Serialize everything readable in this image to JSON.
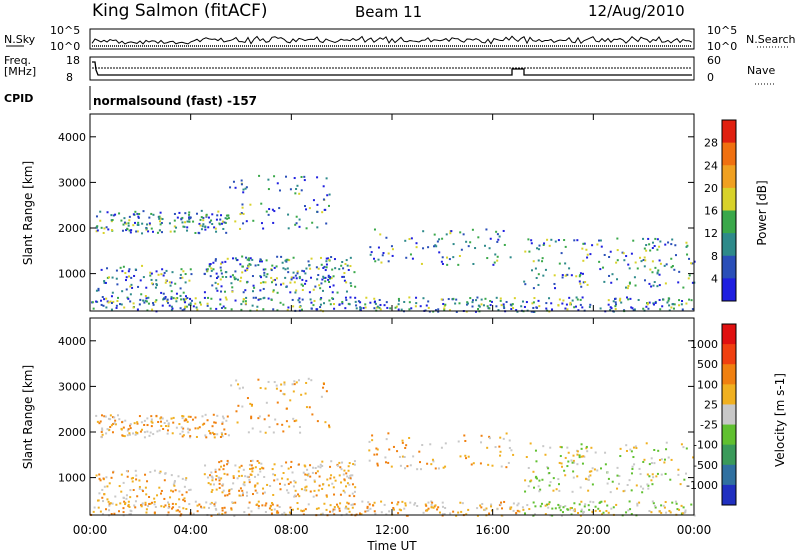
{
  "header": {
    "station": "King Salmon (fitACF)",
    "beam": "Beam 11",
    "date": "12/Aug/2010"
  },
  "sky_panel": {
    "left_label": "N.Sky",
    "right_label": "N.Search",
    "left_ticks": [
      "10^5",
      "10^0"
    ],
    "right_ticks": [
      "10^5",
      "10^0"
    ]
  },
  "freq_panel": {
    "left_label_1": "Freq.",
    "left_label_2": "[MHz]",
    "left_ticks": [
      "18",
      "8"
    ],
    "right_label": "Nave",
    "right_ticks": [
      "60",
      "0"
    ]
  },
  "cpid_panel": {
    "label": "CPID",
    "text": "normalsound (fast) -157"
  },
  "x_axis": {
    "label": "Time UT",
    "ticks": [
      "00:00",
      "04:00",
      "08:00",
      "12:00",
      "16:00",
      "20:00",
      "00:00"
    ]
  },
  "chart_data": [
    {
      "type": "heatmap",
      "name": "power",
      "ylabel": "Slant Range [km]",
      "xlabel": "Time UT",
      "x_ticks": [
        "00:00",
        "04:00",
        "08:00",
        "12:00",
        "16:00",
        "20:00",
        "00:00"
      ],
      "x_range_hours": [
        0,
        24
      ],
      "ylim": [
        180,
        4500
      ],
      "y_ticks": [
        "1000",
        "2000",
        "3000",
        "4000"
      ],
      "colorbar": {
        "label": "Power [dB]",
        "ticks": [
          "4",
          "8",
          "12",
          "16",
          "20",
          "24",
          "28"
        ],
        "colors": [
          "#1f1fe0",
          "#2a4fb8",
          "#2e8a8a",
          "#3aa84a",
          "#d8d22a",
          "#f0a020",
          "#f07010",
          "#e02010"
        ]
      }
    },
    {
      "type": "heatmap",
      "name": "velocity",
      "ylabel": "Slant Range [km]",
      "xlabel": "Time UT",
      "x_ticks": [
        "00:00",
        "04:00",
        "08:00",
        "12:00",
        "16:00",
        "20:00",
        "00:00"
      ],
      "x_range_hours": [
        0,
        24
      ],
      "ylim": [
        180,
        4500
      ],
      "y_ticks": [
        "1000",
        "2000",
        "3000",
        "4000"
      ],
      "colorbar": {
        "label": "Velocity [m s-1]",
        "ticks": [
          "1000",
          "500",
          "100",
          "25",
          "-25",
          "-100",
          "-500",
          "-1000"
        ],
        "colors": [
          "#2030c0",
          "#3070a0",
          "#3a9a5a",
          "#60c030",
          "#c8c8c8",
          "#f0b020",
          "#f08010",
          "#f04010",
          "#e01010"
        ]
      }
    }
  ],
  "colors": {
    "axes": "#000000",
    "background": "#ffffff"
  }
}
